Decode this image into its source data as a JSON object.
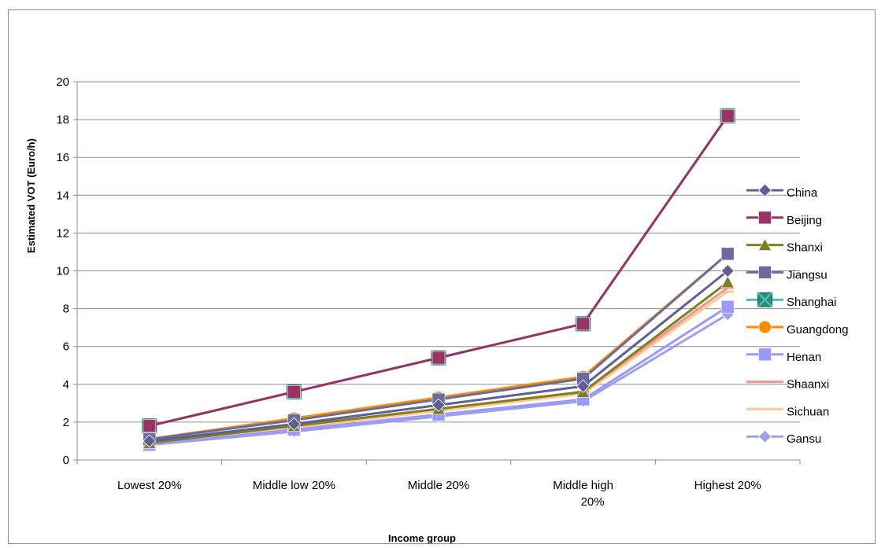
{
  "chart_data": {
    "type": "line",
    "title": "",
    "xlabel": "Income group",
    "ylabel": "Estimated VOT (Euro/h)",
    "categories": [
      "Lowest 20%",
      "Middle low 20%",
      "Middle 20%",
      "Middle high 20%",
      "Highest 20%"
    ],
    "category_lines": [
      [
        "Lowest 20%"
      ],
      [
        "Middle low 20%"
      ],
      [
        "Middle 20%"
      ],
      [
        "Middle high",
        "20%"
      ],
      [
        "Highest 20%"
      ]
    ],
    "ylim": [
      0,
      20
    ],
    "yticks": [
      0,
      2,
      4,
      6,
      8,
      10,
      12,
      14,
      16,
      18,
      20
    ],
    "grid": "horizontal",
    "legend_position": "right",
    "series": [
      {
        "name": "China",
        "color": "#5f5f96",
        "marker": "diamond",
        "values": [
          1.0,
          1.9,
          2.9,
          3.9,
          10.0
        ]
      },
      {
        "name": "Beijing",
        "color": "#993366",
        "marker": "square",
        "values": [
          1.8,
          3.6,
          5.4,
          7.2,
          18.2
        ]
      },
      {
        "name": "Shanxi",
        "color": "#7f7f1f",
        "marker": "triangle",
        "values": [
          0.9,
          1.8,
          2.7,
          3.6,
          9.4
        ]
      },
      {
        "name": "Jiangsu",
        "color": "#6b6ba0",
        "marker": "square",
        "values": [
          1.1,
          2.1,
          3.2,
          4.3,
          10.9
        ]
      },
      {
        "name": "Shanghai",
        "color": "#40c0c0",
        "marker": "xsquare",
        "values": [
          1.8,
          3.6,
          5.4,
          7.2,
          18.2
        ]
      },
      {
        "name": "Guangdong",
        "color": "#ff8c00",
        "marker": "circle",
        "values": [
          1.1,
          2.2,
          3.3,
          4.4,
          10.9
        ]
      },
      {
        "name": "Henan",
        "color": "#9999ff",
        "marker": "square",
        "values": [
          0.8,
          1.6,
          2.4,
          3.2,
          8.1
        ]
      },
      {
        "name": "Shaanxi",
        "color": "#f29494",
        "marker": "dash",
        "values": [
          0.9,
          1.8,
          2.7,
          3.6,
          9.1
        ]
      },
      {
        "name": "Sichuan",
        "color": "#ffc896",
        "marker": "dash",
        "values": [
          0.9,
          1.7,
          2.6,
          3.5,
          8.9
        ]
      },
      {
        "name": "Gansu",
        "color": "#a0a0e8",
        "marker": "diamond",
        "values": [
          0.8,
          1.5,
          2.3,
          3.1,
          7.7
        ]
      }
    ]
  }
}
